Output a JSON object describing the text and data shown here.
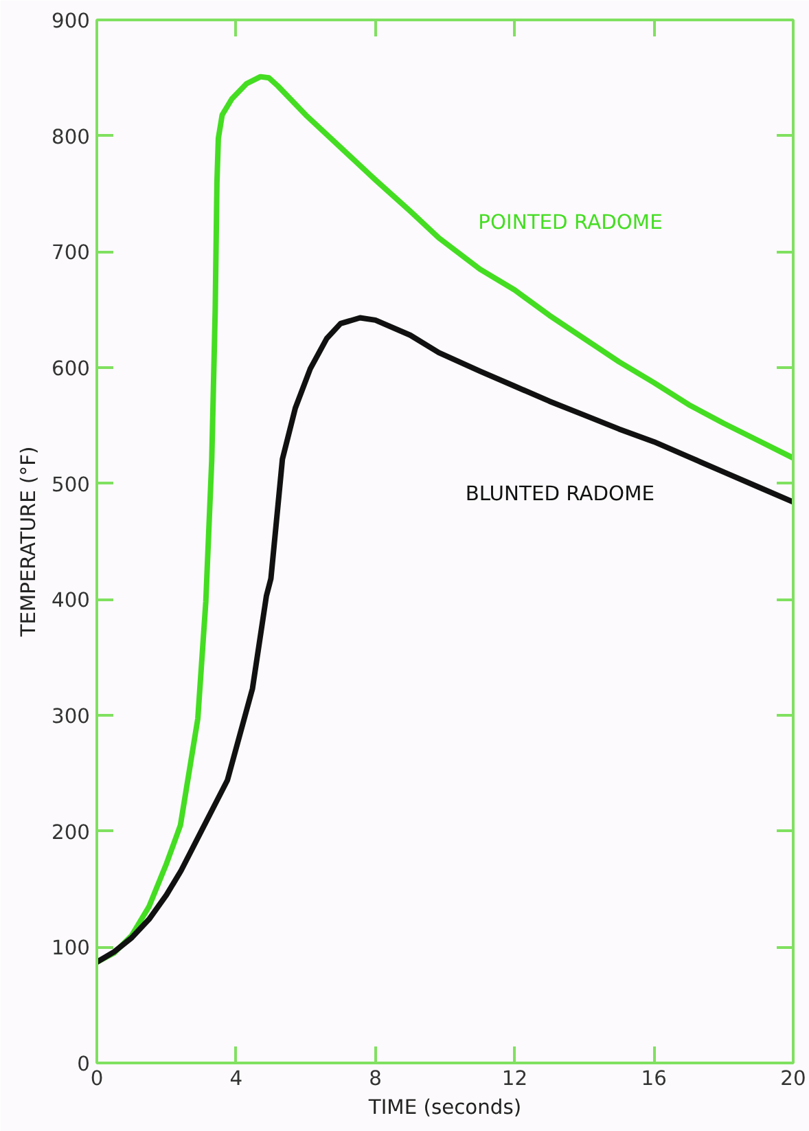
{
  "chart_data": {
    "type": "line",
    "xlabel": "TIME (seconds)",
    "ylabel": "TEMPERATURE (°F)",
    "xlim": [
      0,
      20
    ],
    "ylim": [
      0,
      900
    ],
    "xticks": [
      0,
      4,
      8,
      12,
      16,
      20
    ],
    "yticks": [
      0,
      100,
      200,
      300,
      400,
      500,
      600,
      700,
      800,
      900
    ],
    "grid": false,
    "line_style": "solid",
    "marker": "none",
    "series": [
      {
        "name": "POINTED RADOME",
        "color": "#44dd22",
        "x": [
          0,
          0.5,
          1,
          1.5,
          2,
          2.4,
          2.9,
          3.13,
          3.3,
          3.4,
          3.45,
          3.49,
          3.6,
          3.88,
          4.3,
          4.7,
          4.94,
          5.2,
          6,
          7,
          8,
          9,
          9.82,
          11,
          12,
          13,
          14,
          15,
          16,
          17,
          18,
          19,
          20
        ],
        "values": [
          87,
          95,
          110,
          135,
          172,
          205,
          297,
          398,
          520,
          650,
          760,
          798,
          818,
          832,
          845,
          851,
          850,
          843,
          818,
          790,
          762,
          735,
          712,
          685,
          667,
          645,
          625,
          605,
          587,
          568,
          552,
          537,
          522
        ]
      },
      {
        "name": "BLUNTED RADOME",
        "color": "#111111",
        "x": [
          0,
          0.5,
          1,
          1.5,
          2,
          2.42,
          3,
          3.75,
          4.47,
          4.87,
          5.0,
          5.33,
          5.7,
          6.13,
          6.6,
          7,
          7.56,
          8,
          9,
          9.82,
          11,
          12,
          13,
          14,
          15,
          16,
          17,
          18,
          19,
          20
        ],
        "values": [
          87,
          96,
          108,
          124,
          145,
          166,
          200,
          244,
          323,
          403,
          418,
          521,
          565,
          599,
          625,
          638,
          643,
          641,
          628,
          613,
          597,
          584,
          571,
          559,
          547,
          536,
          523,
          510,
          497,
          484
        ]
      }
    ]
  }
}
